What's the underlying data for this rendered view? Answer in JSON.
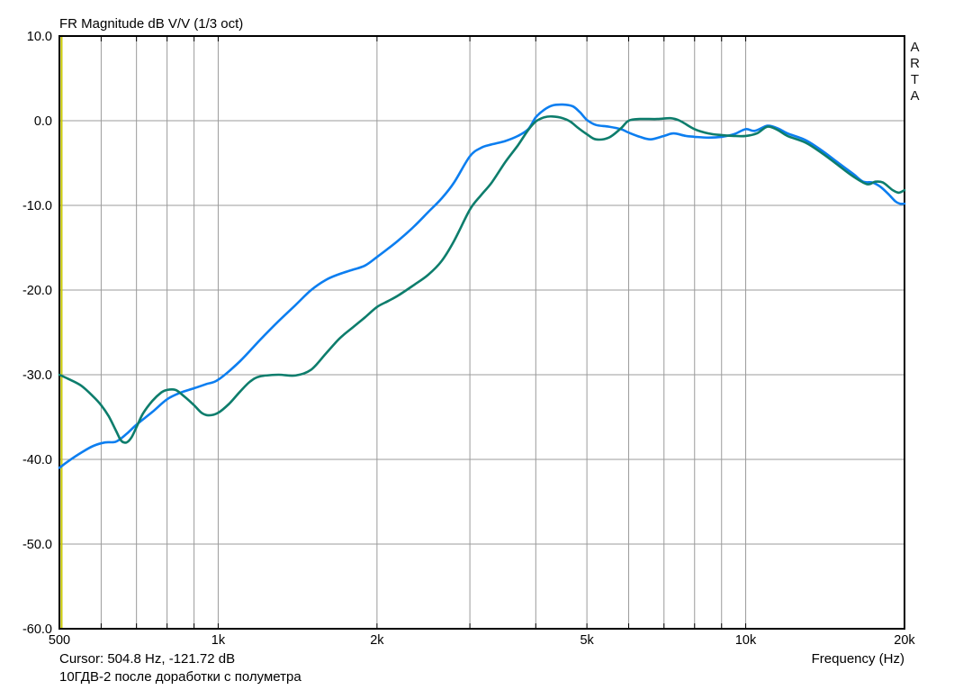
{
  "window": {
    "background": "#ffffff"
  },
  "header": {
    "title": "FR Magnitude dB V/V (1/3 oct)"
  },
  "watermark": {
    "text": "ARTA"
  },
  "status": {
    "cursor_text": "Cursor: 504.8 Hz, -121.72 dB",
    "subtitle": "10ГДВ-2 после доработки с полуметра"
  },
  "chart_data": {
    "type": "line",
    "title": "FR Magnitude dB V/V (1/3 oct)",
    "xlabel": "Frequency (Hz)",
    "ylabel": "",
    "x_scale": "log",
    "xlim": [
      500,
      20000
    ],
    "ylim": [
      -60,
      10
    ],
    "grid": true,
    "grid_color": "#9b9b9b",
    "border_color": "#000000",
    "y_gridlines": [
      0,
      -10,
      -20,
      -30,
      -40,
      -50
    ],
    "y_tick_values": [
      10,
      0,
      -10,
      -20,
      -30,
      -40,
      -50,
      -60
    ],
    "y_tick_labels": [
      "10.0",
      "0.0",
      "-10.0",
      "-20.0",
      "-30.0",
      "-40.0",
      "-50.0",
      "-60.0"
    ],
    "x_gridlines": [
      600,
      700,
      800,
      900,
      1000,
      2000,
      3000,
      4000,
      5000,
      6000,
      7000,
      8000,
      9000,
      10000,
      20000
    ],
    "x_ticks": [
      {
        "f": 500,
        "label": "500"
      },
      {
        "f": 1000,
        "label": "1k"
      },
      {
        "f": 2000,
        "label": "2k"
      },
      {
        "f": 5000,
        "label": "5k"
      },
      {
        "f": 10000,
        "label": "10k"
      },
      {
        "f": 20000,
        "label": "20k"
      }
    ],
    "cursor": {
      "hz": 504.8,
      "color": "#c8c800"
    },
    "series": [
      {
        "name": "fr-curve-blue",
        "color": "#0c7ef0",
        "points": [
          [
            500,
            -41.0
          ],
          [
            520,
            -40.2
          ],
          [
            550,
            -39.2
          ],
          [
            580,
            -38.4
          ],
          [
            610,
            -38.0
          ],
          [
            640,
            -37.9
          ],
          [
            670,
            -37.0
          ],
          [
            700,
            -35.9
          ],
          [
            750,
            -34.4
          ],
          [
            800,
            -32.9
          ],
          [
            850,
            -32.1
          ],
          [
            900,
            -31.6
          ],
          [
            950,
            -31.1
          ],
          [
            1000,
            -30.6
          ],
          [
            1100,
            -28.4
          ],
          [
            1200,
            -25.9
          ],
          [
            1300,
            -23.7
          ],
          [
            1400,
            -21.8
          ],
          [
            1500,
            -20.0
          ],
          [
            1600,
            -18.8
          ],
          [
            1700,
            -18.1
          ],
          [
            1800,
            -17.6
          ],
          [
            1900,
            -17.1
          ],
          [
            2000,
            -16.1
          ],
          [
            2100,
            -15.1
          ],
          [
            2200,
            -14.1
          ],
          [
            2350,
            -12.5
          ],
          [
            2500,
            -10.8
          ],
          [
            2650,
            -9.2
          ],
          [
            2800,
            -7.3
          ],
          [
            3000,
            -4.2
          ],
          [
            3150,
            -3.2
          ],
          [
            3300,
            -2.8
          ],
          [
            3500,
            -2.4
          ],
          [
            3700,
            -1.8
          ],
          [
            3870,
            -1.0
          ],
          [
            4000,
            0.4
          ],
          [
            4150,
            1.3
          ],
          [
            4300,
            1.8
          ],
          [
            4500,
            1.9
          ],
          [
            4700,
            1.7
          ],
          [
            4850,
            1.0
          ],
          [
            5000,
            0.1
          ],
          [
            5200,
            -0.5
          ],
          [
            5500,
            -0.7
          ],
          [
            5800,
            -1.0
          ],
          [
            6000,
            -1.4
          ],
          [
            6300,
            -1.9
          ],
          [
            6600,
            -2.2
          ],
          [
            7000,
            -1.8
          ],
          [
            7300,
            -1.5
          ],
          [
            7700,
            -1.8
          ],
          [
            8000,
            -1.9
          ],
          [
            8500,
            -2.0
          ],
          [
            9000,
            -1.9
          ],
          [
            9500,
            -1.6
          ],
          [
            10000,
            -1.0
          ],
          [
            10400,
            -1.2
          ],
          [
            11000,
            -0.6
          ],
          [
            11500,
            -0.9
          ],
          [
            12000,
            -1.5
          ],
          [
            13000,
            -2.3
          ],
          [
            14000,
            -3.6
          ],
          [
            15000,
            -5.0
          ],
          [
            16000,
            -6.3
          ],
          [
            16700,
            -7.2
          ],
          [
            17400,
            -7.3
          ],
          [
            18000,
            -7.8
          ],
          [
            18600,
            -8.6
          ],
          [
            19200,
            -9.5
          ],
          [
            19600,
            -9.8
          ],
          [
            20000,
            -9.8
          ]
        ]
      },
      {
        "name": "fr-curve-green",
        "color": "#0d7d6c",
        "points": [
          [
            500,
            -30.0
          ],
          [
            520,
            -30.5
          ],
          [
            550,
            -31.3
          ],
          [
            580,
            -32.6
          ],
          [
            600,
            -33.6
          ],
          [
            620,
            -34.9
          ],
          [
            640,
            -36.6
          ],
          [
            655,
            -37.8
          ],
          [
            670,
            -38.0
          ],
          [
            685,
            -37.4
          ],
          [
            700,
            -36.2
          ],
          [
            720,
            -34.6
          ],
          [
            750,
            -33.1
          ],
          [
            780,
            -32.1
          ],
          [
            800,
            -31.8
          ],
          [
            830,
            -31.8
          ],
          [
            860,
            -32.5
          ],
          [
            900,
            -33.6
          ],
          [
            930,
            -34.5
          ],
          [
            960,
            -34.8
          ],
          [
            1000,
            -34.5
          ],
          [
            1050,
            -33.4
          ],
          [
            1100,
            -32.0
          ],
          [
            1150,
            -30.8
          ],
          [
            1200,
            -30.2
          ],
          [
            1300,
            -30.0
          ],
          [
            1400,
            -30.1
          ],
          [
            1500,
            -29.4
          ],
          [
            1600,
            -27.5
          ],
          [
            1700,
            -25.7
          ],
          [
            1800,
            -24.4
          ],
          [
            1900,
            -23.2
          ],
          [
            2000,
            -22.0
          ],
          [
            2100,
            -21.3
          ],
          [
            2200,
            -20.6
          ],
          [
            2350,
            -19.4
          ],
          [
            2500,
            -18.2
          ],
          [
            2650,
            -16.6
          ],
          [
            2800,
            -14.2
          ],
          [
            3000,
            -10.5
          ],
          [
            3150,
            -8.8
          ],
          [
            3300,
            -7.3
          ],
          [
            3500,
            -4.9
          ],
          [
            3700,
            -2.9
          ],
          [
            3870,
            -1.1
          ],
          [
            4000,
            -0.1
          ],
          [
            4150,
            0.4
          ],
          [
            4300,
            0.5
          ],
          [
            4500,
            0.3
          ],
          [
            4650,
            -0.1
          ],
          [
            4800,
            -0.8
          ],
          [
            5000,
            -1.6
          ],
          [
            5200,
            -2.2
          ],
          [
            5500,
            -2.0
          ],
          [
            5800,
            -0.9
          ],
          [
            6000,
            0.0
          ],
          [
            6300,
            0.2
          ],
          [
            6800,
            0.2
          ],
          [
            7200,
            0.3
          ],
          [
            7500,
            0.0
          ],
          [
            8000,
            -1.0
          ],
          [
            8500,
            -1.5
          ],
          [
            9000,
            -1.7
          ],
          [
            9500,
            -1.8
          ],
          [
            10000,
            -1.8
          ],
          [
            10500,
            -1.5
          ],
          [
            11000,
            -0.7
          ],
          [
            11500,
            -1.1
          ],
          [
            12000,
            -1.8
          ],
          [
            13000,
            -2.6
          ],
          [
            14000,
            -3.9
          ],
          [
            15000,
            -5.3
          ],
          [
            16000,
            -6.6
          ],
          [
            17000,
            -7.5
          ],
          [
            17600,
            -7.2
          ],
          [
            18200,
            -7.3
          ],
          [
            19000,
            -8.2
          ],
          [
            19500,
            -8.5
          ],
          [
            20000,
            -8.2
          ]
        ]
      }
    ]
  }
}
